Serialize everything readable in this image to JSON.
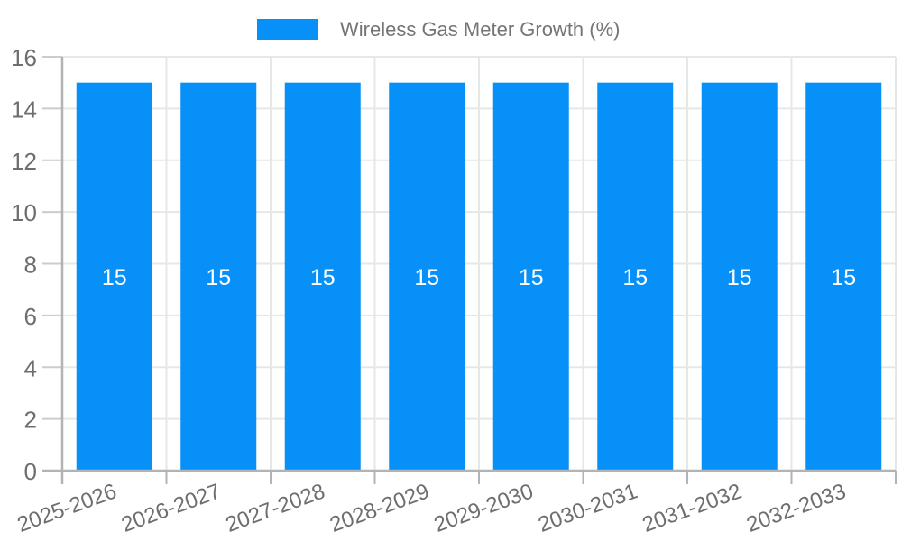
{
  "legend": {
    "label": "Wireless Gas Meter Growth (%)"
  },
  "chart_data": {
    "type": "bar",
    "title": "Wireless Gas Meter Growth (%)",
    "categories": [
      "2025-2026",
      "2026-2027",
      "2027-2028",
      "2028-2029",
      "2029-2030",
      "2030-2031",
      "2031-2032",
      "2032-2033"
    ],
    "values": [
      15,
      15,
      15,
      15,
      15,
      15,
      15,
      15
    ],
    "value_labels": [
      "15",
      "15",
      "15",
      "15",
      "15",
      "15",
      "15",
      "15"
    ],
    "xlabel": "",
    "ylabel": "",
    "ylim": [
      0,
      16
    ],
    "yticks": [
      0,
      2,
      4,
      6,
      8,
      10,
      12,
      14,
      16
    ],
    "grid": true,
    "legend_position": "top-center",
    "x_label_rotation_deg": -20,
    "colors": {
      "bar": "#0690F8",
      "value_label": "#ffffff",
      "axis_label": "#6e6e6e",
      "legend_text": "#757575",
      "gridline": "#e7e7e7",
      "tick": "#cccccc",
      "axis_line": "#b3b3b3",
      "background": "#ffffff"
    }
  }
}
